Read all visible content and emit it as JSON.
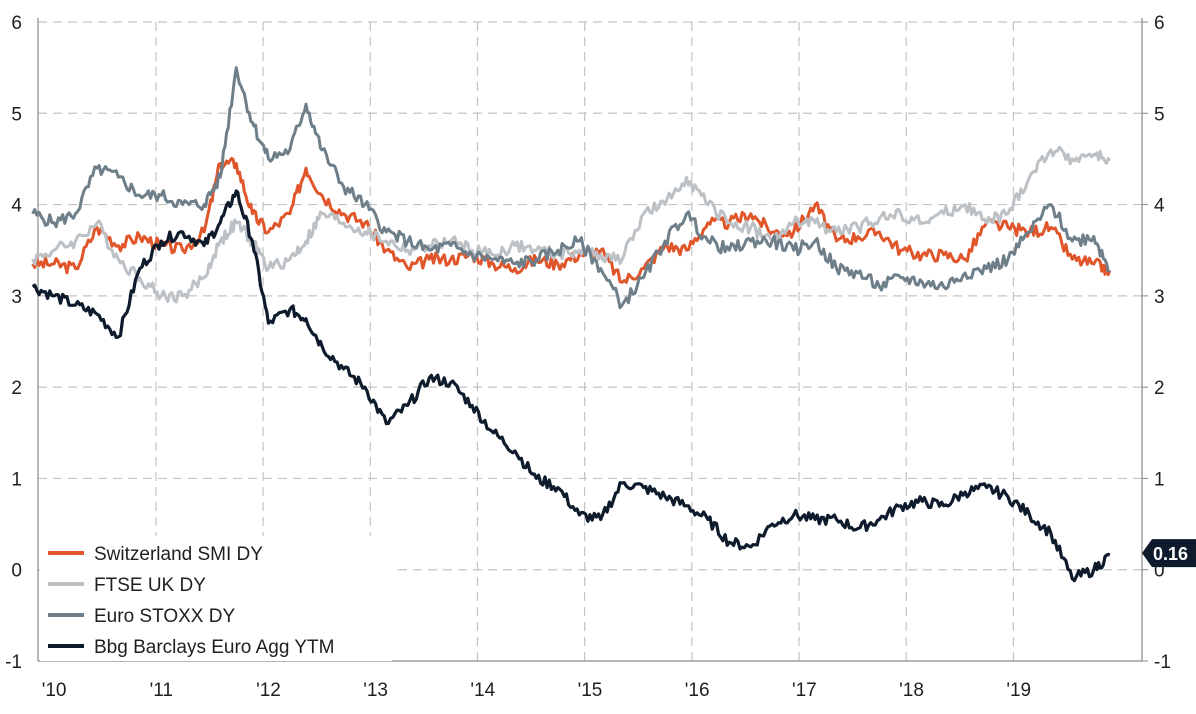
{
  "chart_data": {
    "type": "line",
    "title": "",
    "xlabel": "",
    "ylabel": "",
    "ylim": [
      -1,
      6
    ],
    "y_ticks": [
      -1,
      0,
      1,
      2,
      3,
      4,
      5,
      6
    ],
    "x_ticks": [
      "'10",
      "'11",
      "'12",
      "'13",
      "'14",
      "'15",
      "'16",
      "'17",
      "'18",
      "'19"
    ],
    "grid": "dashed",
    "legend_position": "bottom-left",
    "last_value_label": "0.16",
    "series": [
      {
        "name": "Switzerland   SMI DY",
        "color": "#e0562a",
        "x": [
          2009.4,
          2009.6,
          2009.8,
          2010.0,
          2010.2,
          2010.4,
          2010.6,
          2010.8,
          2011.0,
          2011.15,
          2011.3,
          2011.45,
          2011.6,
          2011.8,
          2011.95,
          2012.1,
          2012.3,
          2012.5,
          2012.7,
          2012.9,
          2013.1,
          2013.3,
          2013.5,
          2013.7,
          2013.9,
          2014.1,
          2014.3,
          2014.5,
          2014.7,
          2014.9,
          2015.1,
          2015.3,
          2015.5,
          2015.7,
          2015.9,
          2016.1,
          2016.3,
          2016.5,
          2016.7,
          2016.9,
          2017.1,
          2017.3,
          2017.5,
          2017.7,
          2017.9,
          2018.1,
          2018.3,
          2018.5,
          2018.7,
          2018.9,
          2019.1,
          2019.3,
          2019.45
        ],
        "values": [
          3.35,
          3.35,
          3.3,
          3.75,
          3.55,
          3.65,
          3.55,
          3.5,
          3.7,
          4.45,
          4.45,
          3.9,
          3.7,
          3.9,
          4.4,
          4.1,
          3.9,
          3.8,
          3.5,
          3.3,
          3.4,
          3.4,
          3.45,
          3.35,
          3.3,
          3.4,
          3.35,
          3.45,
          3.5,
          3.15,
          3.3,
          3.55,
          3.5,
          3.8,
          3.8,
          3.9,
          3.7,
          3.7,
          4.0,
          3.6,
          3.65,
          3.7,
          3.5,
          3.45,
          3.45,
          3.4,
          3.8,
          3.75,
          3.7,
          3.75,
          3.4,
          3.35,
          3.28
        ]
      },
      {
        "name": "FTSE UK DY",
        "color": "#bcc1c6",
        "x": [
          2009.4,
          2009.6,
          2009.8,
          2010.0,
          2010.2,
          2010.4,
          2010.6,
          2010.8,
          2011.0,
          2011.15,
          2011.3,
          2011.45,
          2011.6,
          2011.8,
          2011.95,
          2012.1,
          2012.3,
          2012.5,
          2012.7,
          2012.9,
          2013.1,
          2013.3,
          2013.5,
          2013.7,
          2013.9,
          2014.1,
          2014.3,
          2014.5,
          2014.7,
          2014.9,
          2015.1,
          2015.3,
          2015.5,
          2015.7,
          2015.9,
          2016.1,
          2016.3,
          2016.5,
          2016.7,
          2016.9,
          2017.1,
          2017.3,
          2017.5,
          2017.7,
          2017.9,
          2018.1,
          2018.3,
          2018.5,
          2018.7,
          2018.9,
          2019.1,
          2019.3,
          2019.45
        ],
        "values": [
          3.4,
          3.5,
          3.6,
          3.8,
          3.4,
          3.2,
          3.0,
          3.0,
          3.2,
          3.6,
          3.8,
          3.6,
          3.3,
          3.4,
          3.6,
          3.9,
          3.8,
          3.7,
          3.6,
          3.5,
          3.55,
          3.6,
          3.5,
          3.45,
          3.55,
          3.5,
          3.45,
          3.5,
          3.45,
          3.4,
          3.9,
          4.0,
          4.3,
          4.0,
          3.8,
          3.75,
          3.6,
          3.8,
          3.8,
          3.7,
          3.75,
          3.85,
          3.9,
          3.8,
          3.9,
          4.0,
          3.8,
          3.9,
          4.3,
          4.6,
          4.5,
          4.55,
          4.48
        ]
      },
      {
        "name": "Euro  STOXX DY",
        "color": "#6e7f8a",
        "x": [
          2009.4,
          2009.6,
          2009.8,
          2010.0,
          2010.2,
          2010.4,
          2010.6,
          2010.8,
          2011.0,
          2011.15,
          2011.3,
          2011.45,
          2011.6,
          2011.8,
          2011.95,
          2012.1,
          2012.3,
          2012.5,
          2012.7,
          2012.9,
          2013.1,
          2013.3,
          2013.5,
          2013.7,
          2013.9,
          2014.1,
          2014.3,
          2014.5,
          2014.7,
          2014.9,
          2015.1,
          2015.3,
          2015.5,
          2015.7,
          2015.9,
          2016.1,
          2016.3,
          2016.5,
          2016.7,
          2016.9,
          2017.1,
          2017.3,
          2017.5,
          2017.7,
          2017.9,
          2018.1,
          2018.3,
          2018.5,
          2018.7,
          2018.9,
          2019.1,
          2019.3,
          2019.45
        ],
        "values": [
          3.9,
          3.8,
          3.9,
          4.4,
          4.3,
          4.1,
          4.1,
          4.0,
          4.0,
          4.3,
          5.5,
          4.9,
          4.5,
          4.6,
          5.1,
          4.6,
          4.2,
          4.0,
          3.7,
          3.6,
          3.5,
          3.55,
          3.45,
          3.4,
          3.35,
          3.4,
          3.5,
          3.6,
          3.3,
          2.9,
          3.2,
          3.6,
          3.9,
          3.6,
          3.5,
          3.6,
          3.6,
          3.5,
          3.6,
          3.3,
          3.25,
          3.1,
          3.2,
          3.15,
          3.1,
          3.25,
          3.3,
          3.4,
          3.7,
          4.0,
          3.6,
          3.65,
          3.28
        ]
      },
      {
        "name": "Bbg  Barclays  Euro  Agg  YTM",
        "color": "#0e1b2c",
        "x": [
          2009.4,
          2009.6,
          2009.8,
          2010.0,
          2010.2,
          2010.4,
          2010.6,
          2010.8,
          2011.0,
          2011.15,
          2011.3,
          2011.45,
          2011.6,
          2011.8,
          2011.95,
          2012.1,
          2012.3,
          2012.5,
          2012.7,
          2012.9,
          2013.1,
          2013.3,
          2013.5,
          2013.7,
          2013.9,
          2014.1,
          2014.3,
          2014.5,
          2014.7,
          2014.9,
          2015.1,
          2015.3,
          2015.5,
          2015.7,
          2015.9,
          2016.1,
          2016.3,
          2016.5,
          2016.7,
          2016.9,
          2017.1,
          2017.3,
          2017.5,
          2017.7,
          2017.9,
          2018.1,
          2018.3,
          2018.5,
          2018.7,
          2018.9,
          2019.1,
          2019.3,
          2019.45
        ],
        "values": [
          3.1,
          3.0,
          2.9,
          2.8,
          2.55,
          3.3,
          3.6,
          3.7,
          3.55,
          3.8,
          4.15,
          3.6,
          2.7,
          2.85,
          2.75,
          2.45,
          2.2,
          2.0,
          1.6,
          1.8,
          2.1,
          2.05,
          1.8,
          1.5,
          1.3,
          1.0,
          0.9,
          0.6,
          0.55,
          0.95,
          0.9,
          0.8,
          0.7,
          0.55,
          0.3,
          0.25,
          0.5,
          0.6,
          0.55,
          0.55,
          0.45,
          0.55,
          0.7,
          0.75,
          0.7,
          0.85,
          0.9,
          0.8,
          0.6,
          0.4,
          -0.1,
          0.0,
          0.16
        ]
      }
    ]
  }
}
